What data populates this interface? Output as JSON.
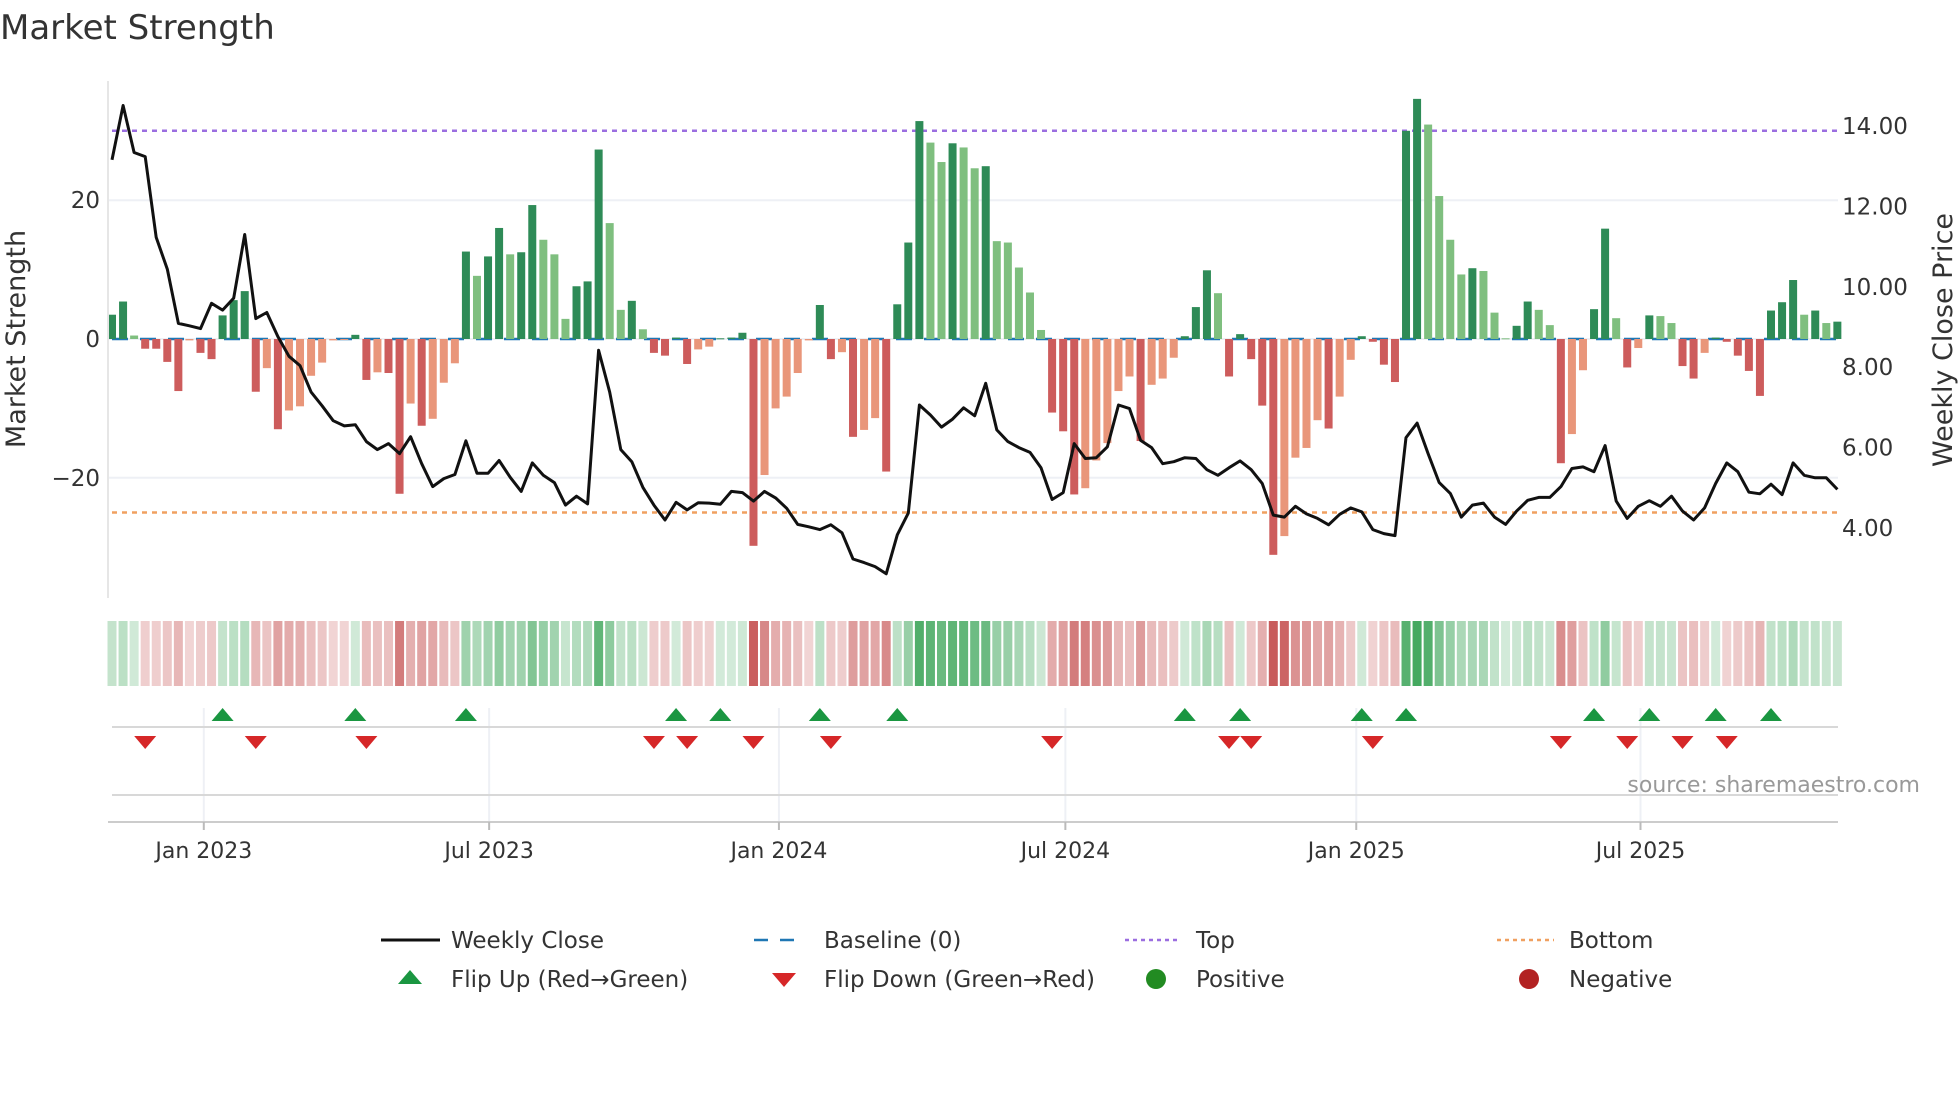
{
  "title": "Market Strength",
  "source": "source: sharemaestro.com",
  "colors": {
    "pos_up": "#2e8b57",
    "pos_down": "#7fbf7f",
    "neg_down": "#cd5c5c",
    "neg_up": "#e9967a",
    "line": "#111111",
    "baseline": "#1f77b4",
    "top": "#9b6ee0",
    "bottom": "#f0a060",
    "flip_up": "#1a9641",
    "flip_down": "#d62728",
    "positive": "#228b22",
    "negative": "#b22222"
  },
  "legend": {
    "weekly_close": "Weekly Close",
    "baseline": "Baseline (0)",
    "top": "Top",
    "bottom": "Bottom",
    "flip_up": "Flip Up (Red→Green)",
    "flip_down": "Flip Down (Green→Red)",
    "positive": "Positive",
    "negative": "Negative"
  },
  "chart_data": {
    "type": "bar+line",
    "title": "Market Strength",
    "ylabel": "Market Strength",
    "y2label": "Weekly Close Price",
    "ylim": [
      -38,
      38
    ],
    "y2lim": [
      2.3,
      15.2
    ],
    "yticks": [
      {
        "v": 20,
        "label": "20"
      },
      {
        "v": 0,
        "label": "0"
      },
      {
        "v": -20,
        "label": "−20"
      }
    ],
    "y2ticks": [
      {
        "v": 14,
        "label": "14.00"
      },
      {
        "v": 12,
        "label": "12.00"
      },
      {
        "v": 10,
        "label": "10.00"
      },
      {
        "v": 8,
        "label": "8.00"
      },
      {
        "v": 6,
        "label": "6.00"
      },
      {
        "v": 4,
        "label": "4.00"
      }
    ],
    "xticks": [
      {
        "week": 8.3,
        "label": "Jan 2023"
      },
      {
        "week": 34.1,
        "label": "Jul 2023"
      },
      {
        "week": 60.3,
        "label": "Jan 2024"
      },
      {
        "week": 86.2,
        "label": "Jul 2024"
      },
      {
        "week": 112.5,
        "label": "Jan 2025"
      },
      {
        "week": 138.2,
        "label": "Jul 2025"
      }
    ],
    "top_level": 30,
    "bottom_level": -25,
    "baseline": 0,
    "strength": [
      3.5,
      5.4,
      0.5,
      -1.4,
      -1.4,
      -3.3,
      -7.5,
      -0.2,
      -2,
      -2.9,
      3.4,
      5.6,
      6.9,
      -7.6,
      -4.2,
      -13,
      -10.3,
      -9.7,
      -5.3,
      -3.4,
      -0.2,
      -0.1,
      0.6,
      -5.9,
      -4.8,
      -4.9,
      -22.3,
      -9.3,
      -12.5,
      -11.5,
      -6.3,
      -3.5,
      12.6,
      9.1,
      11.9,
      16.0,
      12.2,
      12.5,
      19.3,
      14.3,
      12.2,
      2.9,
      7.6,
      8.3,
      27.3,
      16.7,
      4.2,
      5.5,
      1.4,
      -2.0,
      -2.4,
      0.2,
      -3.6,
      -1.5,
      -1.1,
      0.1,
      0.2,
      0.9,
      -29.8,
      -19.6,
      -10,
      -8.3,
      -4.9,
      -0.2,
      4.9,
      -2.9,
      -1.9,
      -14.1,
      -13.1,
      -11.4,
      -19.1,
      5.0,
      13.9,
      31.4,
      28.3,
      25.5,
      28.2,
      27.6,
      24.6,
      24.9,
      14.1,
      13.9,
      10.3,
      6.7,
      1.3,
      -10.6,
      -13.3,
      -22.4,
      -21.5,
      -17.5,
      -15,
      -7.5,
      -5.4,
      -14.7,
      -6.6,
      -5.7,
      -2.7,
      0.4,
      4.6,
      9.9,
      6.6,
      -5.4,
      0.7,
      -2.9,
      -9.6,
      -31.1,
      -28.4,
      -17.1,
      -15.7,
      -11.7,
      -12.9,
      -8.3,
      -3,
      0.4,
      -0.4,
      -3.7,
      -6.2,
      30.0,
      34.6,
      30.9,
      20.6,
      14.3,
      9.3,
      10.2,
      9.8,
      3.8,
      0.1,
      1.9,
      5.4,
      4.2,
      2.0,
      -17.9,
      -13.7,
      -4.5,
      4.3,
      15.9,
      3.0,
      -4.1,
      -1.3,
      3.4,
      3.3,
      2.3,
      -3.9,
      -5.7,
      -2,
      0.2,
      -0.4,
      -2.4,
      -4.6,
      -8.2,
      4.1,
      5.3,
      8.5,
      3.5,
      4.1,
      2.3,
      2.5
    ],
    "weekly_close": [
      13.16,
      14.51,
      13.34,
      13.24,
      11.23,
      10.44,
      9.09,
      9.03,
      8.96,
      9.59,
      9.42,
      9.72,
      11.3,
      9.21,
      9.36,
      8.76,
      8.27,
      8.04,
      7.38,
      7.04,
      6.67,
      6.54,
      6.57,
      6.15,
      5.95,
      6.1,
      5.85,
      6.27,
      5.6,
      5.03,
      5.23,
      5.33,
      6.17,
      5.36,
      5.36,
      5.68,
      5.26,
      4.91,
      5.62,
      5.31,
      5.13,
      4.57,
      4.79,
      4.6,
      8.42,
      7.38,
      5.95,
      5.65,
      5.01,
      4.57,
      4.2,
      4.64,
      4.45,
      4.63,
      4.62,
      4.59,
      4.91,
      4.88,
      4.67,
      4.91,
      4.75,
      4.49,
      4.09,
      4.03,
      3.96,
      4.08,
      3.88,
      3.23,
      3.14,
      3.04,
      2.86,
      3.83,
      4.37,
      7.06,
      6.81,
      6.51,
      6.71,
      6.99,
      6.79,
      7.6,
      6.44,
      6.15,
      6.0,
      5.88,
      5.5,
      4.71,
      4.88,
      6.1,
      5.73,
      5.75,
      6.02,
      7.06,
      6.97,
      6.18,
      6.0,
      5.6,
      5.65,
      5.75,
      5.73,
      5.45,
      5.31,
      5.5,
      5.67,
      5.45,
      5.11,
      4.32,
      4.27,
      4.54,
      4.35,
      4.24,
      4.08,
      4.34,
      4.5,
      4.4,
      3.96,
      3.86,
      3.81,
      6.25,
      6.61,
      5.85,
      5.13,
      4.86,
      4.27,
      4.57,
      4.62,
      4.27,
      4.09,
      4.42,
      4.69,
      4.76,
      4.76,
      5.03,
      5.48,
      5.52,
      5.4,
      6.05,
      4.67,
      4.24,
      4.54,
      4.68,
      4.54,
      4.79,
      4.42,
      4.2,
      4.5,
      5.11,
      5.62,
      5.4,
      4.89,
      4.85,
      5.09,
      4.83,
      5.62,
      5.31,
      5.25,
      5.25,
      4.96
    ],
    "flip_up_weeks": [
      11,
      23,
      33,
      52,
      56,
      65,
      72,
      98,
      103,
      114,
      118,
      135,
      140,
      146,
      151
    ],
    "flip_down_weeks": [
      4,
      14,
      24,
      50,
      53,
      59,
      66,
      86,
      102,
      104,
      115,
      132,
      138,
      143,
      147
    ]
  }
}
